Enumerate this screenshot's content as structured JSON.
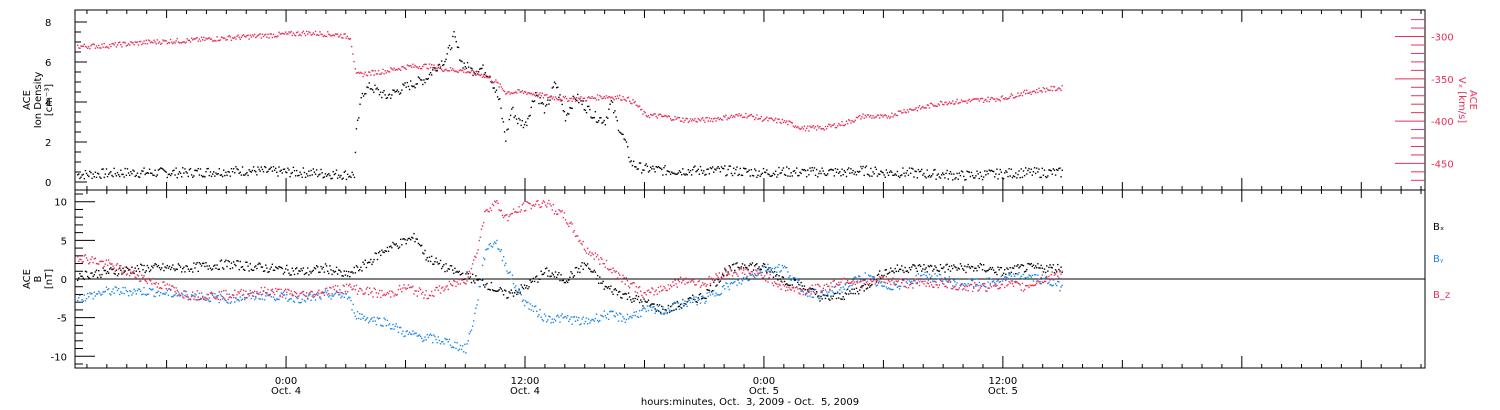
{
  "chart_data": [
    {
      "type": "scatter",
      "panel": "top",
      "ylabel_lines": [
        "ACE",
        "Ion Density",
        "[cm⁻³]"
      ],
      "y2label_lines": [
        "ACE",
        "Vₓ [km/s]"
      ],
      "ylim": [
        0,
        8.5
      ],
      "yticks": [
        0,
        2,
        4,
        6,
        8
      ],
      "y2lim": [
        -472,
        -271
      ],
      "y2ticks": [
        -450,
        -400,
        -350,
        -300
      ],
      "colors": {
        "density": "#000000",
        "vx": "#e8305a"
      },
      "series": [
        {
          "name": "Ion Density",
          "axis": "left",
          "color": "#000000",
          "points": [
            [
              -10.5,
              0.4
            ],
            [
              -8,
              0.5
            ],
            [
              -5,
              0.5
            ],
            [
              -2,
              0.6
            ],
            [
              1,
              0.5
            ],
            [
              3,
              0.4
            ],
            [
              3.4,
              0.4
            ],
            [
              3.5,
              2.5
            ],
            [
              3.8,
              4.5
            ],
            [
              4.2,
              4.8
            ],
            [
              5,
              4.3
            ],
            [
              6,
              4.8
            ],
            [
              7,
              5.2
            ],
            [
              7.5,
              5.8
            ],
            [
              8,
              6.2
            ],
            [
              8.4,
              7.3
            ],
            [
              8.8,
              6.0
            ],
            [
              9.3,
              5.6
            ],
            [
              9.8,
              5.7
            ],
            [
              10.2,
              5.4
            ],
            [
              10.7,
              4.0
            ],
            [
              11,
              2.2
            ],
            [
              11.3,
              3.7
            ],
            [
              11.6,
              3.1
            ],
            [
              12,
              2.9
            ],
            [
              12.5,
              4.5
            ],
            [
              13,
              3.6
            ],
            [
              13.5,
              5.0
            ],
            [
              14,
              3.3
            ],
            [
              14.5,
              4.3
            ],
            [
              15,
              3.8
            ],
            [
              15.5,
              3.3
            ],
            [
              16,
              3.1
            ],
            [
              16.3,
              4.0
            ],
            [
              16.6,
              3.0
            ],
            [
              17,
              2.0
            ],
            [
              17.3,
              1.0
            ],
            [
              17.6,
              0.8
            ],
            [
              18,
              0.7
            ],
            [
              19,
              0.6
            ],
            [
              20,
              0.6
            ],
            [
              21,
              0.6
            ],
            [
              22,
              0.6
            ],
            [
              23,
              0.55
            ],
            [
              24,
              0.5
            ],
            [
              25,
              0.55
            ],
            [
              26,
              0.5
            ],
            [
              27,
              0.55
            ],
            [
              28,
              0.5
            ],
            [
              29,
              0.6
            ],
            [
              30,
              0.5
            ],
            [
              31,
              0.5
            ],
            [
              32,
              0.45
            ],
            [
              33,
              0.4
            ],
            [
              34,
              0.35
            ],
            [
              35,
              0.4
            ],
            [
              36,
              0.45
            ],
            [
              37,
              0.5
            ],
            [
              38,
              0.5
            ],
            [
              39,
              0.5
            ]
          ]
        },
        {
          "name": "Vx",
          "axis": "right",
          "color": "#e8305a",
          "points": [
            [
              -10.5,
              -311
            ],
            [
              -9,
              -310
            ],
            [
              -7,
              -306
            ],
            [
              -5,
              -304
            ],
            [
              -3,
              -301
            ],
            [
              -1,
              -298
            ],
            [
              1,
              -295
            ],
            [
              2.5,
              -297
            ],
            [
              3.2,
              -300
            ],
            [
              3.5,
              -345
            ],
            [
              4,
              -343
            ],
            [
              5,
              -340
            ],
            [
              6,
              -335
            ],
            [
              7,
              -334
            ],
            [
              8,
              -338
            ],
            [
              9,
              -340
            ],
            [
              10,
              -346
            ],
            [
              10.5,
              -353
            ],
            [
              11,
              -365
            ],
            [
              12,
              -365
            ],
            [
              13,
              -370
            ],
            [
              14,
              -373
            ],
            [
              15,
              -373
            ],
            [
              16,
              -370
            ],
            [
              17,
              -372
            ],
            [
              17.5,
              -378
            ],
            [
              18,
              -392
            ],
            [
              19,
              -394
            ],
            [
              20,
              -398
            ],
            [
              21,
              -398
            ],
            [
              22,
              -395
            ],
            [
              23,
              -392
            ],
            [
              24,
              -397
            ],
            [
              25,
              -400
            ],
            [
              26,
              -408
            ],
            [
              27,
              -407
            ],
            [
              28,
              -402
            ],
            [
              29,
              -393
            ],
            [
              30,
              -395
            ],
            [
              31,
              -387
            ],
            [
              32,
              -383
            ],
            [
              33,
              -377
            ],
            [
              34,
              -376
            ],
            [
              35,
              -374
            ],
            [
              36,
              -372
            ],
            [
              37,
              -366
            ],
            [
              38,
              -362
            ],
            [
              39,
              -360
            ]
          ]
        }
      ]
    },
    {
      "type": "scatter",
      "panel": "bottom",
      "ylabel_lines": [
        "ACE",
        "B",
        "[nT]"
      ],
      "ylim": [
        -12,
        12
      ],
      "yticks": [
        -10,
        -5,
        0,
        5,
        10
      ],
      "zero_line": true,
      "legend": [
        {
          "label": "Bₓ",
          "color": "#000000"
        },
        {
          "label": "Bᵧ",
          "color": "#1e88e5"
        },
        {
          "label": "B_z",
          "color": "#e8305a"
        }
      ],
      "series": [
        {
          "name": "Bx",
          "color": "#000000",
          "points": [
            [
              -10.5,
              0.5
            ],
            [
              -9,
              1
            ],
            [
              -7,
              1.5
            ],
            [
              -5,
              1.5
            ],
            [
              -3,
              2
            ],
            [
              -1,
              1.5
            ],
            [
              1,
              1
            ],
            [
              2,
              1.5
            ],
            [
              3,
              0.5
            ],
            [
              4,
              2
            ],
            [
              5,
              4
            ],
            [
              6,
              5
            ],
            [
              6.5,
              5.5
            ],
            [
              7,
              3
            ],
            [
              8,
              1.5
            ],
            [
              9,
              0.5
            ],
            [
              10,
              -0.5
            ],
            [
              11,
              -2
            ],
            [
              12,
              -1
            ],
            [
              13,
              1
            ],
            [
              14,
              0
            ],
            [
              15,
              2
            ],
            [
              16,
              -1
            ],
            [
              17,
              -2
            ],
            [
              18,
              -3
            ],
            [
              19,
              -4
            ],
            [
              20,
              -3
            ],
            [
              21,
              -2
            ],
            [
              22,
              1
            ],
            [
              23,
              2
            ],
            [
              24,
              1.5
            ],
            [
              25,
              0
            ],
            [
              26,
              -1
            ],
            [
              27,
              -2.5
            ],
            [
              28,
              -2
            ],
            [
              29,
              -1
            ],
            [
              30,
              1
            ],
            [
              31,
              1.5
            ],
            [
              32,
              1.5
            ],
            [
              33,
              1.5
            ],
            [
              34,
              1.5
            ],
            [
              35,
              1.5
            ],
            [
              36,
              1
            ],
            [
              37,
              1.5
            ],
            [
              38,
              1.5
            ],
            [
              39,
              1.5
            ]
          ]
        },
        {
          "name": "By",
          "color": "#1e88e5",
          "points": [
            [
              -10.5,
              -2.5
            ],
            [
              -9,
              -1.5
            ],
            [
              -7,
              -1.5
            ],
            [
              -5,
              -2
            ],
            [
              -3,
              -2.5
            ],
            [
              -1,
              -2
            ],
            [
              1,
              -2.5
            ],
            [
              2,
              -2
            ],
            [
              3,
              -2
            ],
            [
              3.5,
              -4.5
            ],
            [
              4,
              -5
            ],
            [
              5,
              -5.5
            ],
            [
              6,
              -7
            ],
            [
              7,
              -7.5
            ],
            [
              8,
              -8
            ],
            [
              9,
              -9
            ],
            [
              9.5,
              -4
            ],
            [
              10,
              4
            ],
            [
              10.5,
              5
            ],
            [
              11,
              2
            ],
            [
              11.5,
              -1
            ],
            [
              12,
              -3
            ],
            [
              13,
              -5
            ],
            [
              14,
              -5
            ],
            [
              15,
              -5.5
            ],
            [
              16,
              -4.5
            ],
            [
              17,
              -5
            ],
            [
              18,
              -4
            ],
            [
              19,
              -4
            ],
            [
              20,
              -3
            ],
            [
              21,
              -2.5
            ],
            [
              22,
              -1
            ],
            [
              23,
              0
            ],
            [
              24,
              1.5
            ],
            [
              25,
              1.5
            ],
            [
              26,
              -1.5
            ],
            [
              27,
              -2
            ],
            [
              28,
              -1
            ],
            [
              29,
              0.5
            ],
            [
              30,
              -1
            ],
            [
              31,
              -0.5
            ],
            [
              32,
              0.5
            ],
            [
              33,
              0
            ],
            [
              34,
              -0.5
            ],
            [
              35,
              -0.5
            ],
            [
              36,
              0
            ],
            [
              37,
              0.5
            ],
            [
              38,
              0
            ],
            [
              39,
              -1
            ]
          ]
        },
        {
          "name": "Bz",
          "color": "#e8305a",
          "points": [
            [
              -10.5,
              3
            ],
            [
              -9,
              2
            ],
            [
              -7,
              0
            ],
            [
              -5,
              -2
            ],
            [
              -3,
              -2
            ],
            [
              -1,
              -1.5
            ],
            [
              1,
              -2
            ],
            [
              2,
              -1.5
            ],
            [
              3,
              -1
            ],
            [
              4,
              -1.5
            ],
            [
              5,
              -2
            ],
            [
              6,
              -1
            ],
            [
              7,
              -2
            ],
            [
              8,
              -1
            ],
            [
              9,
              0
            ],
            [
              9.5,
              3
            ],
            [
              10,
              9
            ],
            [
              10.5,
              10
            ],
            [
              11,
              8
            ],
            [
              12,
              9.5
            ],
            [
              13,
              10
            ],
            [
              14,
              8
            ],
            [
              15,
              4
            ],
            [
              16,
              2
            ],
            [
              17,
              0
            ],
            [
              18,
              -2
            ],
            [
              19,
              -1
            ],
            [
              20,
              0
            ],
            [
              21,
              -0.5
            ],
            [
              22,
              1
            ],
            [
              23,
              1
            ],
            [
              24,
              0.5
            ],
            [
              25,
              -1
            ],
            [
              26,
              -1.5
            ],
            [
              27,
              -1
            ],
            [
              28,
              0
            ],
            [
              29,
              -0.5
            ],
            [
              30,
              0
            ],
            [
              31,
              -0.5
            ],
            [
              32,
              -0.5
            ],
            [
              33,
              -0.5
            ],
            [
              34,
              -1
            ],
            [
              35,
              -1
            ],
            [
              36,
              -0.5
            ],
            [
              37,
              -1
            ],
            [
              38,
              0
            ],
            [
              39,
              1
            ]
          ]
        }
      ]
    }
  ],
  "time_axis": {
    "xlim_hours": [
      -10.6,
      57.2
    ],
    "major_ticks": [
      {
        "hour": 0,
        "line1": "0:00",
        "line2": "Oct. 4"
      },
      {
        "hour": 12,
        "line1": "12:00",
        "line2": "Oct. 4"
      },
      {
        "hour": 24,
        "line1": "0:00",
        "line2": "Oct. 5"
      },
      {
        "hour": 36,
        "line1": "12:00",
        "line2": "Oct. 5"
      }
    ],
    "xlabel": "hours:minutes, Oct.  3, 2009 - Oct.  5, 2009"
  }
}
